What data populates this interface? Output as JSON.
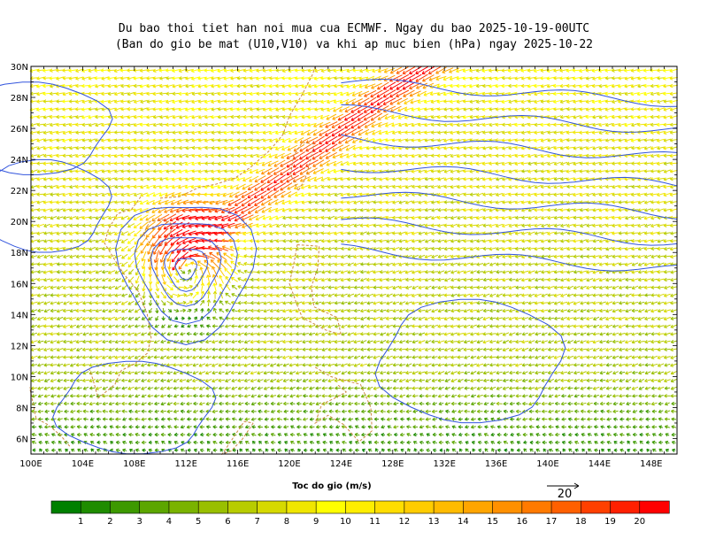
{
  "title": {
    "line1": "Du bao thoi tiet han noi mua cua ECMWF. Ngay du bao 2025-10-19-00UTC",
    "line2": "(Ban do gio be mat (U10,V10) va khi ap muc bien (hPa) ngay 2025-10-22"
  },
  "axes": {
    "lat_labels": [
      "30N",
      "28N",
      "26N",
      "24N",
      "22N",
      "20N",
      "18N",
      "16N",
      "14N",
      "12N",
      "10N",
      "8N",
      "6N"
    ],
    "lon_labels": [
      "100E",
      "104E",
      "108E",
      "112E",
      "116E",
      "120E",
      "124E",
      "128E",
      "132E",
      "136E",
      "140E",
      "144E",
      "148E"
    ]
  },
  "colorbar": {
    "title": "Toc do gio (m/s)",
    "ticks": [
      "1",
      "2",
      "3",
      "4",
      "5",
      "6",
      "7",
      "8",
      "9",
      "10",
      "11",
      "12",
      "13",
      "14",
      "15",
      "16",
      "17",
      "18",
      "19",
      "20"
    ],
    "colors": [
      "#008000",
      "#1f8c00",
      "#3d9900",
      "#5ca600",
      "#7ab300",
      "#99bf00",
      "#b8cc00",
      "#d6d900",
      "#f0e600",
      "#ffff00",
      "#ffee00",
      "#ffdd00",
      "#ffcc00",
      "#ffbb00",
      "#ffa500",
      "#ff9000",
      "#ff7a00",
      "#ff6000",
      "#ff4000",
      "#ff2000",
      "#ff0000"
    ]
  },
  "reference_vector": {
    "label": "20"
  },
  "colors": {
    "isobar": "#3355dd",
    "coast": "#cc8844",
    "frame": "#000000"
  }
}
